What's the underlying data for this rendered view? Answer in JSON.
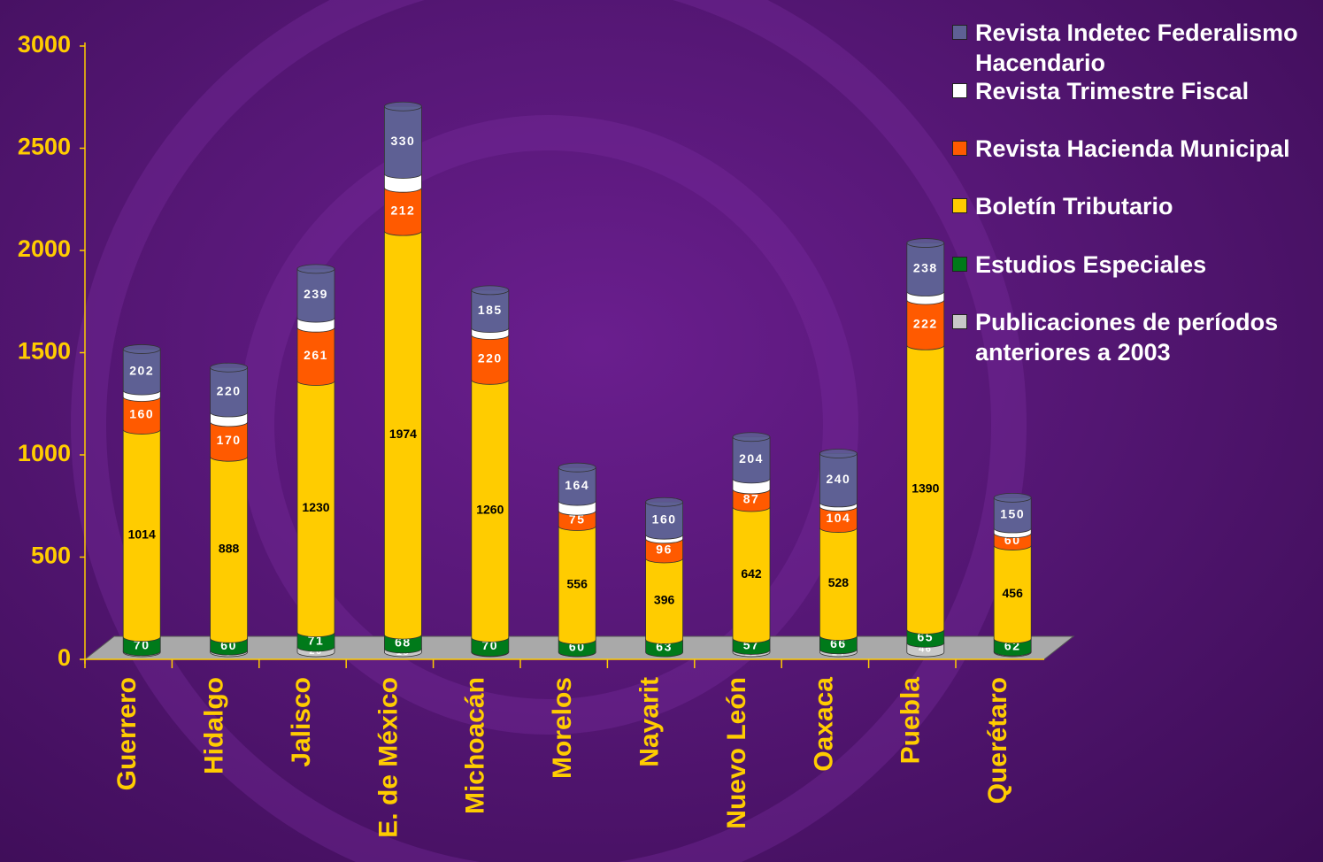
{
  "chart_data": {
    "type": "bar",
    "stacked": true,
    "categories": [
      "Guerrero",
      "Hidalgo",
      "Jalisco",
      "E. de México",
      "Michoacán",
      "Morelos",
      "Nayarit",
      "Nuevo León",
      "Oaxaca",
      "Puebla",
      "Querétaro"
    ],
    "series": [
      {
        "name": "Publicaciones de períodos anteriores a 2003",
        "color": "#c8c8c8",
        "values": [
          5,
          8,
          26,
          18,
          2,
          1,
          null,
          11,
          14,
          46,
          4
        ]
      },
      {
        "name": "Estudios Especiales",
        "color": "#007a1a",
        "values": [
          70,
          60,
          71,
          68,
          70,
          60,
          63,
          57,
          66,
          65,
          62
        ]
      },
      {
        "name": "Boletín Tributario",
        "color": "#ffcc00",
        "values": [
          1014,
          888,
          1230,
          1974,
          1260,
          556,
          396,
          642,
          528,
          1390,
          456
        ]
      },
      {
        "name": "Revista Hacienda Municipal",
        "color": "#ff5a00",
        "values": [
          160,
          170,
          261,
          212,
          220,
          75,
          96,
          87,
          104,
          222,
          60
        ]
      },
      {
        "name": "Revista Trimestre Fiscal",
        "color": "#ffffff",
        "values": [
          32,
          47,
          48,
          68,
          34,
          48,
          20,
          52,
          20,
          41,
          24
        ]
      },
      {
        "name": "Revista Indetec Federalismo Hacendario",
        "color": "#5e6094",
        "values": [
          202,
          220,
          239,
          330,
          185,
          164,
          160,
          204,
          240,
          238,
          150
        ]
      }
    ],
    "ylim": [
      0,
      3000
    ],
    "yticks": [
      0,
      500,
      1000,
      1500,
      2000,
      2500,
      3000
    ]
  }
}
